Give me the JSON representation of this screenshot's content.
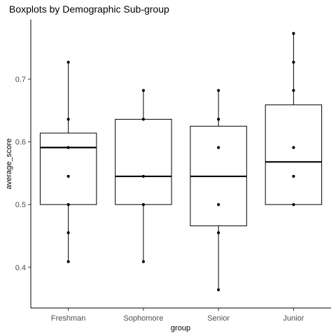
{
  "chart_data": {
    "type": "boxplot",
    "title": "Boxplots by Demographic Sub-group",
    "xlabel": "group",
    "ylabel": "average_score",
    "ylim": [
      0.335,
      0.795
    ],
    "yticks": [
      0.4,
      0.5,
      0.6,
      0.7
    ],
    "ytick_labels": [
      "0.4",
      "0.5",
      "0.6",
      "0.7"
    ],
    "categories": [
      "Freshman",
      "Sophomore",
      "Senior",
      "Junior"
    ],
    "boxes": [
      {
        "group": "Freshman",
        "whisker_low": 0.409,
        "q1": 0.5,
        "median": 0.591,
        "q3": 0.614,
        "whisker_high": 0.727
      },
      {
        "group": "Sophomore",
        "whisker_low": 0.409,
        "q1": 0.5,
        "median": 0.545,
        "q3": 0.636,
        "whisker_high": 0.682
      },
      {
        "group": "Senior",
        "whisker_low": 0.364,
        "q1": 0.466,
        "median": 0.545,
        "q3": 0.625,
        "whisker_high": 0.682
      },
      {
        "group": "Junior",
        "whisker_low": 0.5,
        "q1": 0.5,
        "median": 0.568,
        "q3": 0.659,
        "whisker_high": 0.773
      }
    ],
    "points": [
      {
        "group": "Freshman",
        "values": [
          0.727,
          0.636,
          0.591,
          0.545,
          0.5,
          0.455,
          0.409
        ]
      },
      {
        "group": "Sophomore",
        "values": [
          0.682,
          0.636,
          0.545,
          0.5,
          0.409
        ]
      },
      {
        "group": "Senior",
        "values": [
          0.682,
          0.636,
          0.591,
          0.5,
          0.455,
          0.364
        ]
      },
      {
        "group": "Junior",
        "values": [
          0.773,
          0.727,
          0.682,
          0.591,
          0.545,
          0.5
        ]
      }
    ],
    "grid": false,
    "legend": "none"
  }
}
